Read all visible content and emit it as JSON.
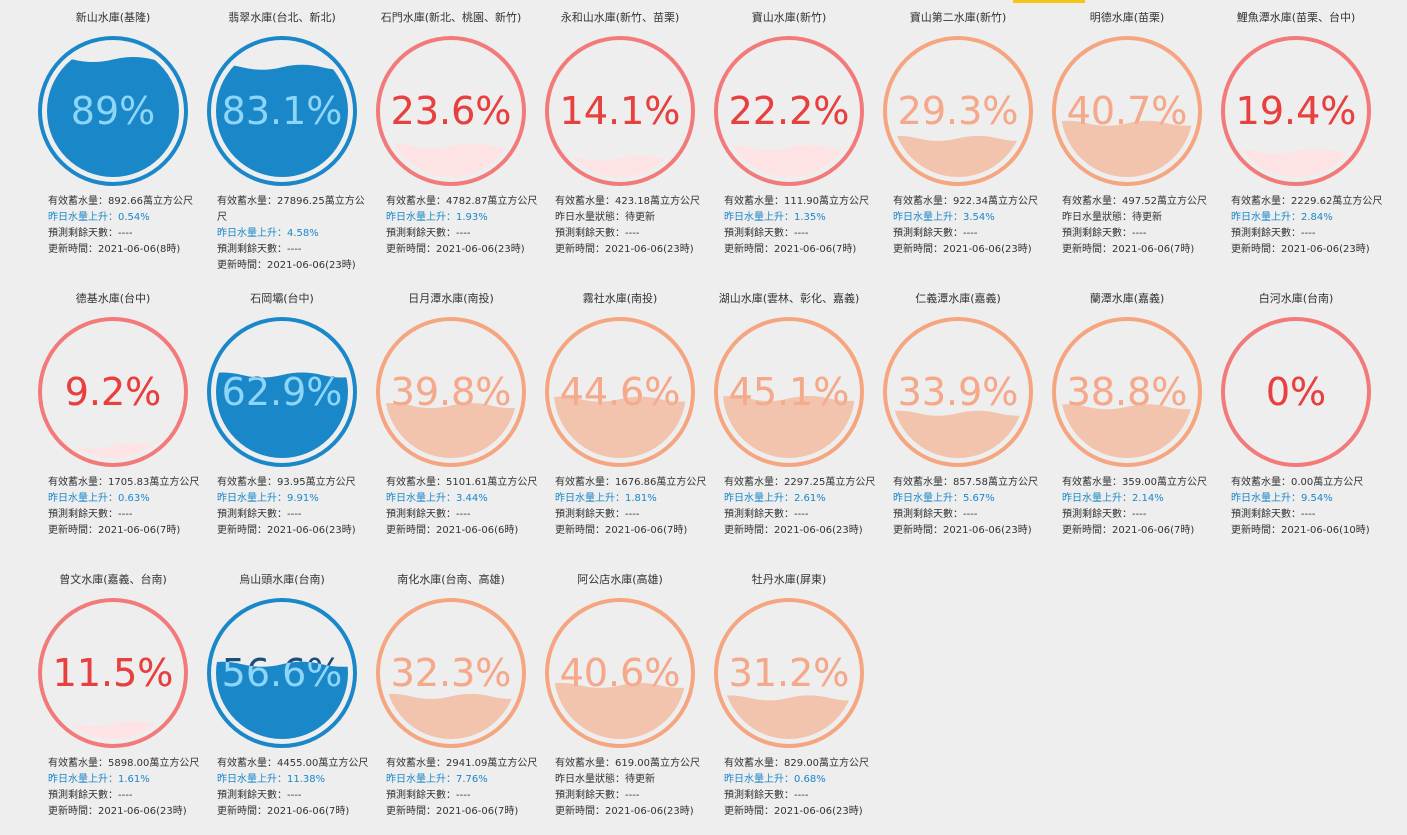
{
  "reservoirs": [
    {
      "name": "新山水庫(基隆)",
      "percent": {
        "value": 89,
        "label": "89%"
      },
      "colors": [
        "#1a87c9",
        "#1a87c9",
        "#8ed6f7"
      ],
      "change_color": "#1a87c9",
      "lines": [
        "有效蓄水量：892.66萬立方公尺",
        "昨日水量上升：0.54%",
        "預測剩餘天數：----",
        "更新時間：2021-06-06(8時)"
      ]
    },
    {
      "name": "翡翠水庫(台北、新北)",
      "percent": {
        "value": 83.1,
        "label": "83.1%"
      },
      "colors": [
        "#1a87c9",
        "#1a87c9",
        "#8ed6f7"
      ],
      "change_color": "#1a87c9",
      "lines": [
        "有效蓄水量：27896.25萬立方公尺",
        "昨日水量上升：4.58%",
        "預測剩餘天數：----",
        "更新時間：2021-06-06(23時)"
      ]
    },
    {
      "name": "石門水庫(新北、桃園、新竹)",
      "percent": {
        "value": 23.6,
        "label": "23.6%"
      },
      "colors": [
        "#f27a7a",
        "#fde3e3",
        "#e8413f"
      ],
      "change_color": "#1a87c9",
      "lines": [
        "有效蓄水量：4782.87萬立方公尺",
        "昨日水量上升：1.93%",
        "預測剩餘天數：----",
        "更新時間：2021-06-06(23時)"
      ]
    },
    {
      "name": "永和山水庫(新竹、苗栗)",
      "percent": {
        "value": 14.1,
        "label": "14.1%"
      },
      "colors": [
        "#f27a7a",
        "#fde3e3",
        "#e8413f"
      ],
      "change_color": "#333333",
      "lines": [
        "有效蓄水量：423.18萬立方公尺",
        "昨日水量狀態：待更新",
        "預測剩餘天數：----",
        "更新時間：2021-06-06(23時)"
      ]
    },
    {
      "name": "寶山水庫(新竹)",
      "percent": {
        "value": 22.2,
        "label": "22.2%"
      },
      "colors": [
        "#f27a7a",
        "#fde3e3",
        "#e8413f"
      ],
      "change_color": "#1a87c9",
      "lines": [
        "有效蓄水量：111.90萬立方公尺",
        "昨日水量上升：1.35%",
        "預測剩餘天數：----",
        "更新時間：2021-06-06(7時)"
      ]
    },
    {
      "name": "寶山第二水庫(新竹)",
      "percent": {
        "value": 29.3,
        "label": "29.3%"
      },
      "colors": [
        "#f5a57f",
        "#f2c4ad",
        "#f5a88a"
      ],
      "change_color": "#1a87c9",
      "lines": [
        "有效蓄水量：922.34萬立方公尺",
        "昨日水量上升：3.54%",
        "預測剩餘天數：----",
        "更新時間：2021-06-06(23時)"
      ]
    },
    {
      "name": "明德水庫(苗栗)",
      "percent": {
        "value": 40.7,
        "label": "40.7%"
      },
      "colors": [
        "#f5a57f",
        "#f2c4ad",
        "#f5a88a"
      ],
      "change_color": "#333333",
      "lines": [
        "有效蓄水量：497.52萬立方公尺",
        "昨日水量狀態：待更新",
        "預測剩餘天數：----",
        "更新時間：2021-06-06(7時)"
      ]
    },
    {
      "name": "鯉魚潭水庫(苗栗、台中)",
      "percent": {
        "value": 19.4,
        "label": "19.4%"
      },
      "colors": [
        "#f27a7a",
        "#fde3e3",
        "#e8413f"
      ],
      "change_color": "#1a87c9",
      "lines": [
        "有效蓄水量：2229.62萬立方公尺",
        "昨日水量上升：2.84%",
        "預測剩餘天數：----",
        "更新時間：2021-06-06(23時)"
      ]
    },
    {
      "name": "德基水庫(台中)",
      "percent": {
        "value": 9.2,
        "label": "9.2%"
      },
      "colors": [
        "#f27a7a",
        "#fde3e3",
        "#e8413f"
      ],
      "change_color": "#1a87c9",
      "lines": [
        "有效蓄水量：1705.83萬立方公尺",
        "昨日水量上升：0.63%",
        "預測剩餘天數：----",
        "更新時間：2021-06-06(7時)"
      ]
    },
    {
      "name": "石岡壩(台中)",
      "percent": {
        "value": 62.9,
        "label": "62.9%"
      },
      "colors": [
        "#1a87c9",
        "#1a87c9",
        "#8ed6f7"
      ],
      "change_color": "#1a87c9",
      "lines": [
        "有效蓄水量：93.95萬立方公尺",
        "昨日水量上升：9.91%",
        "預測剩餘天數：----",
        "更新時間：2021-06-06(23時)"
      ]
    },
    {
      "name": "日月潭水庫(南投)",
      "percent": {
        "value": 39.8,
        "label": "39.8%"
      },
      "colors": [
        "#f5a57f",
        "#f2c4ad",
        "#f5a88a"
      ],
      "change_color": "#1a87c9",
      "lines": [
        "有效蓄水量：5101.61萬立方公尺",
        "昨日水量上升：3.44%",
        "預測剩餘天數：----",
        "更新時間：2021-06-06(6時)"
      ]
    },
    {
      "name": "霧社水庫(南投)",
      "percent": {
        "value": 44.6,
        "label": "44.6%"
      },
      "colors": [
        "#f5a57f",
        "#f2c4ad",
        "#f5a88a"
      ],
      "change_color": "#1a87c9",
      "lines": [
        "有效蓄水量：1676.86萬立方公尺",
        "昨日水量上升：1.81%",
        "預測剩餘天數：----",
        "更新時間：2021-06-06(7時)"
      ]
    },
    {
      "name": "湖山水庫(雲林、彰化、嘉義)",
      "percent": {
        "value": 45.1,
        "label": "45.1%"
      },
      "colors": [
        "#f5a57f",
        "#f2c4ad",
        "#f5a88a"
      ],
      "change_color": "#1a87c9",
      "lines": [
        "有效蓄水量：2297.25萬立方公尺",
        "昨日水量上升：2.61%",
        "預測剩餘天數：----",
        "更新時間：2021-06-06(23時)"
      ]
    },
    {
      "name": "仁義潭水庫(嘉義)",
      "percent": {
        "value": 33.9,
        "label": "33.9%"
      },
      "colors": [
        "#f5a57f",
        "#f2c4ad",
        "#f5a88a"
      ],
      "change_color": "#1a87c9",
      "lines": [
        "有效蓄水量：857.58萬立方公尺",
        "昨日水量上升：5.67%",
        "預測剩餘天數：----",
        "更新時間：2021-06-06(23時)"
      ]
    },
    {
      "name": "蘭潭水庫(嘉義)",
      "percent": {
        "value": 38.8,
        "label": "38.8%"
      },
      "colors": [
        "#f5a57f",
        "#f2c4ad",
        "#f5a88a"
      ],
      "change_color": "#1a87c9",
      "lines": [
        "有效蓄水量：359.00萬立方公尺",
        "昨日水量上升：2.14%",
        "預測剩餘天數：----",
        "更新時間：2021-06-06(7時)"
      ]
    },
    {
      "name": "白河水庫(台南)",
      "percent": {
        "value": 0,
        "label": "0%"
      },
      "colors": [
        "#f27a7a",
        "#fde3e3",
        "#e8413f"
      ],
      "change_color": "#1a87c9",
      "lines": [
        "有效蓄水量：0.00萬立方公尺",
        "昨日水量上升：9.54%",
        "預測剩餘天數：----",
        "更新時間：2021-06-06(10時)"
      ]
    },
    {
      "name": "曾文水庫(嘉義、台南)",
      "percent": {
        "value": 11.5,
        "label": "11.5%"
      },
      "colors": [
        "#f27a7a",
        "#fde3e3",
        "#e8413f"
      ],
      "change_color": "#1a87c9",
      "lines": [
        "有效蓄水量：5898.00萬立方公尺",
        "昨日水量上升：1.61%",
        "預測剩餘天數：----",
        "更新時間：2021-06-06(23時)"
      ]
    },
    {
      "name": "烏山頭水庫(台南)",
      "percent": {
        "value": 56.6,
        "label": "56.6%"
      },
      "colors": [
        "#1a87c9",
        "#1a87c9",
        "#8ed6f7"
      ],
      "change_color": "#1a87c9",
      "lines": [
        "有效蓄水量：4455.00萬立方公尺",
        "昨日水量上升：11.38%",
        "預測剩餘天數：----",
        "更新時間：2021-06-06(7時)"
      ]
    },
    {
      "name": "南化水庫(台南、高雄)",
      "percent": {
        "value": 32.3,
        "label": "32.3%"
      },
      "colors": [
        "#f5a57f",
        "#f2c4ad",
        "#f5a88a"
      ],
      "change_color": "#1a87c9",
      "lines": [
        "有效蓄水量：2941.09萬立方公尺",
        "昨日水量上升：7.76%",
        "預測剩餘天數：----",
        "更新時間：2021-06-06(7時)"
      ]
    },
    {
      "name": "阿公店水庫(高雄)",
      "percent": {
        "value": 40.6,
        "label": "40.6%"
      },
      "colors": [
        "#f5a57f",
        "#f2c4ad",
        "#f5a88a"
      ],
      "change_color": "#333333",
      "lines": [
        "有效蓄水量：619.00萬立方公尺",
        "昨日水量狀態：待更新",
        "預測剩餘天數：----",
        "更新時間：2021-06-06(23時)"
      ]
    },
    {
      "name": "牡丹水庫(屏東)",
      "percent": {
        "value": 31.2,
        "label": "31.2%"
      },
      "colors": [
        "#f5a57f",
        "#f2c4ad",
        "#f5a88a"
      ],
      "change_color": "#1a87c9",
      "lines": [
        "有效蓄水量：829.00萬立方公尺",
        "昨日水量上升：0.68%",
        "預測剩餘天數：----",
        "更新時間：2021-06-06(23時)"
      ]
    }
  ]
}
